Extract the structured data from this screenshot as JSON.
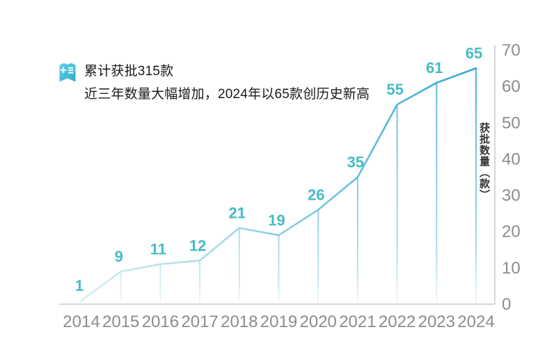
{
  "annotation": {
    "icon": "document-plus-icon",
    "line1": "累计获批315款",
    "line2": "近三年数量大幅增加，2024年以65款创历史新高"
  },
  "chart_data": {
    "type": "line",
    "title": "",
    "xlabel": "",
    "ylabel": "获批数量（款）",
    "categories": [
      "2014",
      "2015",
      "2016",
      "2017",
      "2018",
      "2019",
      "2020",
      "2021",
      "2022",
      "2023",
      "2024"
    ],
    "values": [
      1,
      9,
      11,
      12,
      21,
      19,
      26,
      35,
      55,
      61,
      65
    ],
    "yticks": [
      0,
      10,
      20,
      30,
      40,
      50,
      60,
      70
    ],
    "ylim": [
      0,
      70
    ],
    "grid": false,
    "legend": "none",
    "axis_position": "right",
    "annotations": [
      "drop lines from each data point to x-axis"
    ],
    "colors": {
      "line_gradient": [
        "#d4ecf2",
        "#a9dcea",
        "#6cc1e1",
        "#2ea3da"
      ],
      "value_label": "#46bcc4",
      "axis_line": "#d6d6d6",
      "tick_text": "#8c8c8c",
      "axis_title_text": "#333333",
      "annotation_text": "#1a1a1a",
      "icon_gradient": [
        "#66cde9",
        "#2bb1c5"
      ]
    }
  }
}
